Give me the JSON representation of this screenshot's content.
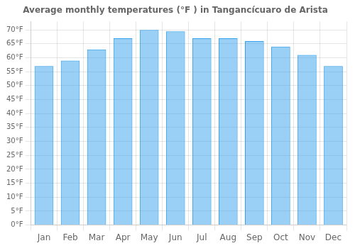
{
  "chart_data": {
    "type": "bar",
    "title": "Average monthly temperatures (°F ) in Tangancícuaro de Arista",
    "categories": [
      "Jan",
      "Feb",
      "Mar",
      "Apr",
      "May",
      "Jun",
      "Jul",
      "Aug",
      "Sep",
      "Oct",
      "Nov",
      "Dec"
    ],
    "values": [
      57,
      59,
      63,
      67,
      70,
      69.5,
      67,
      67,
      66,
      64,
      61,
      57
    ],
    "ylim": [
      0,
      73
    ],
    "yticks": [
      {
        "value": 0,
        "label": "0°F"
      },
      {
        "value": 5,
        "label": "5°F"
      },
      {
        "value": 10,
        "label": "10°F"
      },
      {
        "value": 15,
        "label": "15°F"
      },
      {
        "value": 20,
        "label": "20°F"
      },
      {
        "value": 25,
        "label": "25°F"
      },
      {
        "value": 30,
        "label": "30°F"
      },
      {
        "value": 35,
        "label": "35°F"
      },
      {
        "value": 40,
        "label": "40°F"
      },
      {
        "value": 45,
        "label": "45°F"
      },
      {
        "value": 50,
        "label": "50°F"
      },
      {
        "value": 55,
        "label": "55°F"
      },
      {
        "value": 60,
        "label": "60°F"
      },
      {
        "value": 65,
        "label": "65°F"
      },
      {
        "value": 70,
        "label": "70°F"
      }
    ],
    "grid": true
  }
}
